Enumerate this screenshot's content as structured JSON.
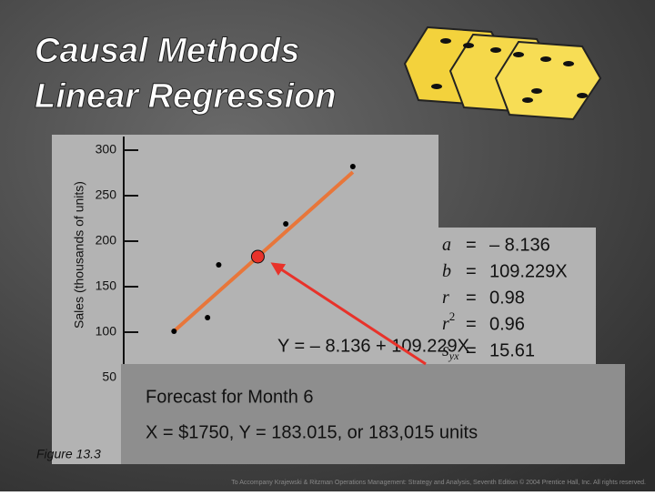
{
  "title_lines": [
    "Causal Methods",
    "Linear Regression"
  ],
  "chart_data": {
    "type": "scatter",
    "y_label": "Sales (thousands of units)",
    "x": [
      1.0,
      1.3,
      1.4,
      2.0,
      2.6
    ],
    "values": [
      101,
      116,
      174,
      219,
      282
    ],
    "xlim": [
      0.55,
      3.35
    ],
    "ylim": [
      50,
      300
    ],
    "yticks": [
      50,
      100,
      150,
      200,
      250,
      300
    ],
    "color": "#000000",
    "line_color": "#e8763a",
    "forecast": {
      "x": 1.75,
      "y": 183.015,
      "color": "#e8322a"
    },
    "equation": "Y = – 8.136 + 109.229X",
    "figure_label": "Figure 13.3"
  },
  "stats": [
    {
      "symbol": "a",
      "eq": "=",
      "value": -8.136,
      "label": "– 8.136"
    },
    {
      "symbol": "b",
      "eq": "=",
      "value": 109.229,
      "label": "109.229X"
    },
    {
      "symbol": "r",
      "eq": "=",
      "value": 0.98,
      "label": "0.98"
    },
    {
      "symbol": "r",
      "sup": "2",
      "eq": "=",
      "value": 0.96,
      "label": "0.96"
    },
    {
      "symbol": "s",
      "sub": "yx",
      "eq": "=",
      "value": 15.61,
      "label": "15.61"
    }
  ],
  "forecast_box": {
    "heading": "Forecast for Month 6",
    "text": "X = $1750, Y = 183.015, or 183,015 units"
  },
  "footer": "To Accompany Krajewski & Ritzman Operations Management: Strategy and Analysis, Seventh Edition © 2004 Prentice Hall, Inc. All rights reserved."
}
